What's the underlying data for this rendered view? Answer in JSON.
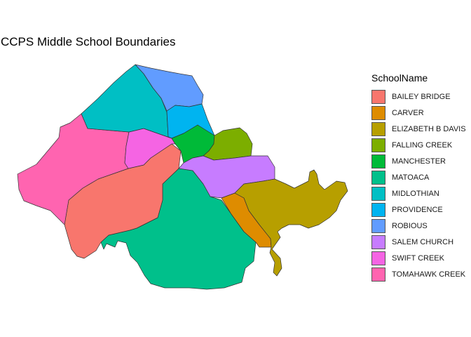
{
  "title": "CCPS Middle School Boundaries",
  "legend": {
    "title": "SchoolName",
    "items": [
      {
        "name": "BAILEY BRIDGE",
        "color": "#F8766D"
      },
      {
        "name": "CARVER",
        "color": "#DE8C00"
      },
      {
        "name": "ELIZABETH B DAVIS",
        "color": "#B79F00"
      },
      {
        "name": "FALLING CREEK",
        "color": "#7CAE00"
      },
      {
        "name": "MANCHESTER",
        "color": "#00BA38"
      },
      {
        "name": "MATOACA",
        "color": "#00C08B"
      },
      {
        "name": "MIDLOTHIAN",
        "color": "#00BFC4"
      },
      {
        "name": "PROVIDENCE",
        "color": "#00B4F0"
      },
      {
        "name": "ROBIOUS",
        "color": "#619CFF"
      },
      {
        "name": "SALEM CHURCH",
        "color": "#C77CFF"
      },
      {
        "name": "SWIFT CREEK",
        "color": "#F564E3"
      },
      {
        "name": "TOMAHAWK CREEK",
        "color": "#FF64B0"
      }
    ]
  }
}
